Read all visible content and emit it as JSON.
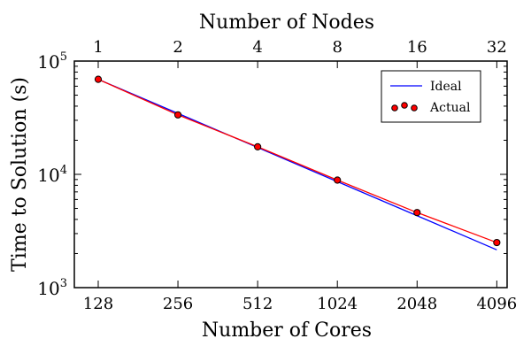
{
  "chart_data": {
    "type": "line",
    "title": "",
    "xlabel_bottom": "Number of Cores",
    "xlabel_top": "Number of Nodes",
    "ylabel": "Time to Solution (s)",
    "x_scale": "log2",
    "y_scale": "log10",
    "x_range_cores": [
      104,
      4480
    ],
    "y_range": [
      1000,
      100000
    ],
    "bottom_ticks": [
      "128",
      "256",
      "512",
      "1024",
      "2048",
      "4096"
    ],
    "top_ticks": [
      "1",
      "2",
      "4",
      "8",
      "16",
      "32"
    ],
    "y_ticks": [
      {
        "base": "10",
        "exp": "3",
        "value": 1000
      },
      {
        "base": "10",
        "exp": "4",
        "value": 10000
      },
      {
        "base": "10",
        "exp": "5",
        "value": 100000
      }
    ],
    "x": [
      128,
      256,
      512,
      1024,
      2048,
      4096
    ],
    "series": [
      {
        "name": "Ideal",
        "kind": "line",
        "color": "#0000ff",
        "values": [
          69000,
          34500,
          17250,
          8625,
          4312,
          2156
        ]
      },
      {
        "name": "Actual",
        "kind": "line+markers",
        "color": "#ff0000",
        "marker_edge": "#000000",
        "values": [
          69000,
          33500,
          17500,
          8900,
          4600,
          2500
        ]
      }
    ],
    "legend_position": "top-right",
    "grid": false
  }
}
